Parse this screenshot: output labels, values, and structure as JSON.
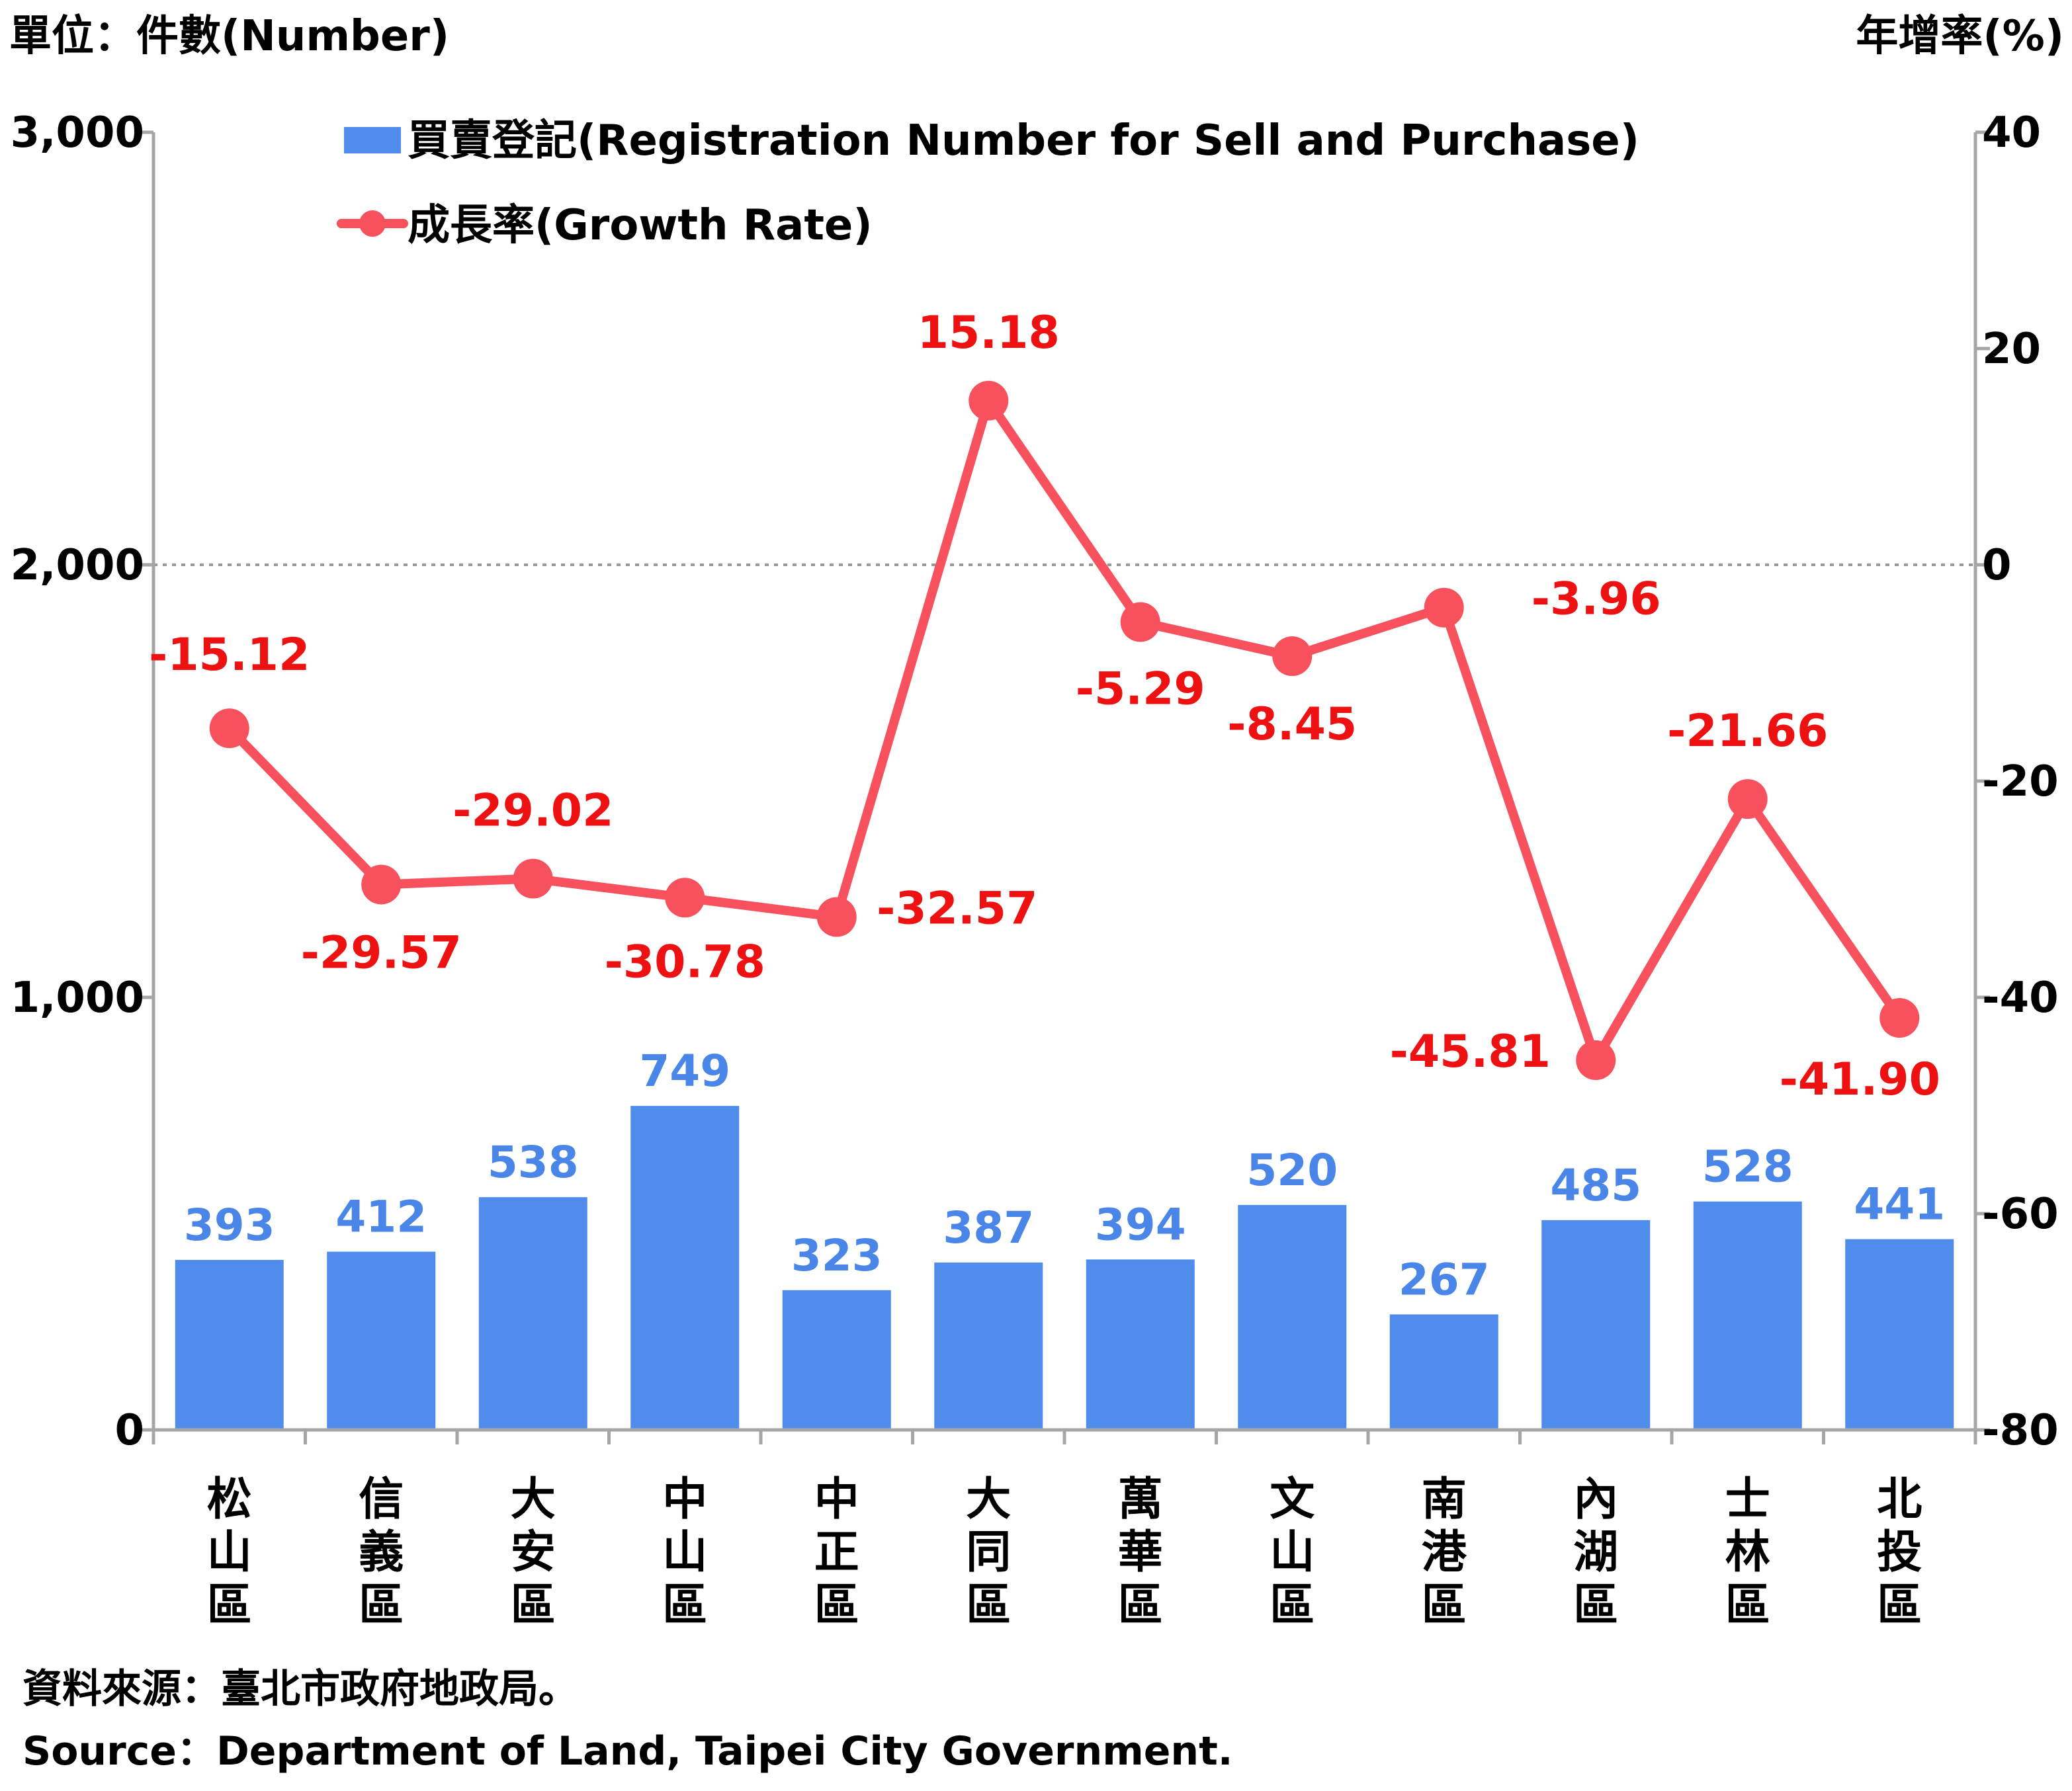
{
  "chart_data": {
    "type": "bar+line",
    "left_unit_label": "單位：件數(Number)",
    "right_unit_label": "年增率(%)",
    "categories": [
      [
        "松",
        "山",
        "區"
      ],
      [
        "信",
        "義",
        "區"
      ],
      [
        "大",
        "安",
        "區"
      ],
      [
        "中",
        "山",
        "區"
      ],
      [
        "中",
        "正",
        "區"
      ],
      [
        "大",
        "同",
        "區"
      ],
      [
        "萬",
        "華",
        "區"
      ],
      [
        "文",
        "山",
        "區"
      ],
      [
        "南",
        "港",
        "區"
      ],
      [
        "內",
        "湖",
        "區"
      ],
      [
        "士",
        "林",
        "區"
      ],
      [
        "北",
        "投",
        "區"
      ]
    ],
    "series": [
      {
        "name": "買賣登記(Registration Number for Sell and Purchase)",
        "type": "bar",
        "axis": "left",
        "color": "#4F8CEB",
        "label_color": "#4A86E8",
        "values": [
          393,
          412,
          538,
          749,
          323,
          387,
          394,
          520,
          267,
          485,
          528,
          441
        ],
        "labels": [
          "393",
          "412",
          "538",
          "749",
          "323",
          "387",
          "394",
          "520",
          "267",
          "485",
          "528",
          "441"
        ]
      },
      {
        "name": "成長率(Growth Rate)",
        "type": "line",
        "axis": "right",
        "color": "#F7515E",
        "label_color": "#EE1111",
        "values": [
          -15.12,
          -29.57,
          -29.02,
          -30.78,
          -32.57,
          15.18,
          -5.29,
          -8.45,
          -3.96,
          -45.81,
          -21.66,
          -41.9
        ],
        "labels": [
          "-15.12",
          "-29.57",
          "-29.02",
          "-30.78",
          "-32.57",
          "15.18",
          "-5.29",
          "-8.45",
          "-3.96",
          "-45.81",
          "-21.66",
          "-41.90"
        ]
      }
    ],
    "y_left": {
      "range": [
        0,
        3000
      ],
      "ticks": [
        0,
        1000,
        2000,
        3000
      ],
      "tick_labels": [
        "0",
        "1,000",
        "2,000",
        "3,000"
      ]
    },
    "y_right": {
      "range": [
        -80,
        40
      ],
      "ticks": [
        -80,
        -60,
        -40,
        -20,
        0,
        20,
        40
      ],
      "tick_labels": [
        "-80",
        "-60",
        "-40",
        "-20",
        "0",
        "20",
        "40"
      ]
    },
    "reference_line": {
      "axis": "right",
      "value": 0,
      "style": "dotted"
    },
    "grid": false,
    "legend_position": "top-left"
  },
  "source": {
    "zh": "資料來源：臺北市政府地政局。",
    "en": "Source：Department of Land, Taipei City Government."
  }
}
